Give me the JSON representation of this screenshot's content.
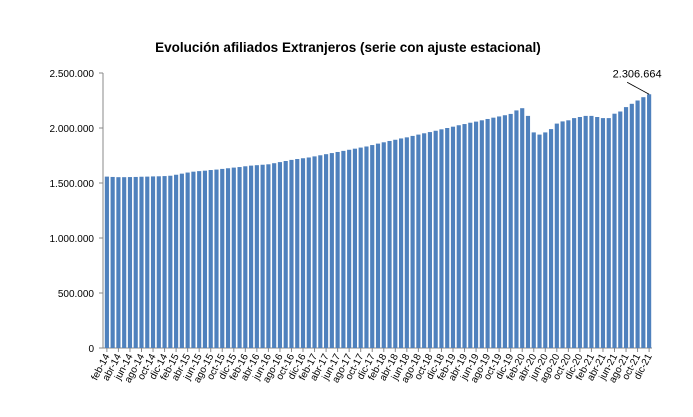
{
  "chart_data": {
    "type": "bar",
    "title": "Evolución afiliados Extranjeros (serie con ajuste estacional)",
    "xlabel": "",
    "ylabel": "",
    "ylim": [
      0,
      2500000
    ],
    "yticks": [
      "0",
      "500.000",
      "1.000.000",
      "1.500.000",
      "2.000.000",
      "2.500.000"
    ],
    "ytick_values": [
      0,
      500000,
      1000000,
      1500000,
      2000000,
      2500000
    ],
    "bar_color": "#4F81BD",
    "grid": false,
    "legend": "none",
    "annotation": {
      "label": "2.306.664",
      "category": "dic-21"
    },
    "categories": [
      "feb-14",
      "mar-14",
      "abr-14",
      "may-14",
      "jun-14",
      "jul-14",
      "ago-14",
      "sep-14",
      "oct-14",
      "nov-14",
      "dic-14",
      "ene-15",
      "feb-15",
      "mar-15",
      "abr-15",
      "may-15",
      "jun-15",
      "jul-15",
      "ago-15",
      "sep-15",
      "oct-15",
      "nov-15",
      "dic-15",
      "ene-16",
      "feb-16",
      "mar-16",
      "abr-16",
      "may-16",
      "jun-16",
      "jul-16",
      "ago-16",
      "sep-16",
      "oct-16",
      "nov-16",
      "dic-16",
      "ene-17",
      "feb-17",
      "mar-17",
      "abr-17",
      "may-17",
      "jun-17",
      "jul-17",
      "ago-17",
      "sep-17",
      "oct-17",
      "nov-17",
      "dic-17",
      "ene-18",
      "feb-18",
      "mar-18",
      "abr-18",
      "may-18",
      "jun-18",
      "jul-18",
      "ago-18",
      "sep-18",
      "oct-18",
      "nov-18",
      "dic-18",
      "ene-19",
      "feb-19",
      "mar-19",
      "abr-19",
      "may-19",
      "jun-19",
      "jul-19",
      "ago-19",
      "sep-19",
      "oct-19",
      "nov-19",
      "dic-19",
      "ene-20",
      "feb-20",
      "mar-20",
      "abr-20",
      "may-20",
      "jun-20",
      "jul-20",
      "ago-20",
      "sep-20",
      "oct-20",
      "nov-20",
      "dic-20",
      "ene-21",
      "feb-21",
      "mar-21",
      "abr-21",
      "may-21",
      "jun-21",
      "jul-21",
      "ago-21",
      "sep-21",
      "oct-21",
      "nov-21",
      "dic-21"
    ],
    "values": [
      1558000,
      1555000,
      1553000,
      1553000,
      1554000,
      1555000,
      1557000,
      1558000,
      1560000,
      1561000,
      1563000,
      1566000,
      1575000,
      1585000,
      1595000,
      1603000,
      1608000,
      1612000,
      1618000,
      1622000,
      1628000,
      1634000,
      1640000,
      1645000,
      1652000,
      1658000,
      1662000,
      1666000,
      1670000,
      1680000,
      1690000,
      1700000,
      1710000,
      1718000,
      1725000,
      1732000,
      1742000,
      1752000,
      1762000,
      1772000,
      1782000,
      1792000,
      1802000,
      1812000,
      1822000,
      1832000,
      1845000,
      1858000,
      1870000,
      1882000,
      1893000,
      1905000,
      1915000,
      1928000,
      1940000,
      1952000,
      1963000,
      1975000,
      1988000,
      2000000,
      2012000,
      2025000,
      2036000,
      2048000,
      2058000,
      2070000,
      2082000,
      2094000,
      2105000,
      2116000,
      2128000,
      2160000,
      2180000,
      2110000,
      1960000,
      1940000,
      1960000,
      1990000,
      2040000,
      2060000,
      2070000,
      2090000,
      2100000,
      2110000,
      2110000,
      2100000,
      2090000,
      2090000,
      2130000,
      2150000,
      2190000,
      2220000,
      2250000,
      2280000,
      2306664
    ]
  }
}
